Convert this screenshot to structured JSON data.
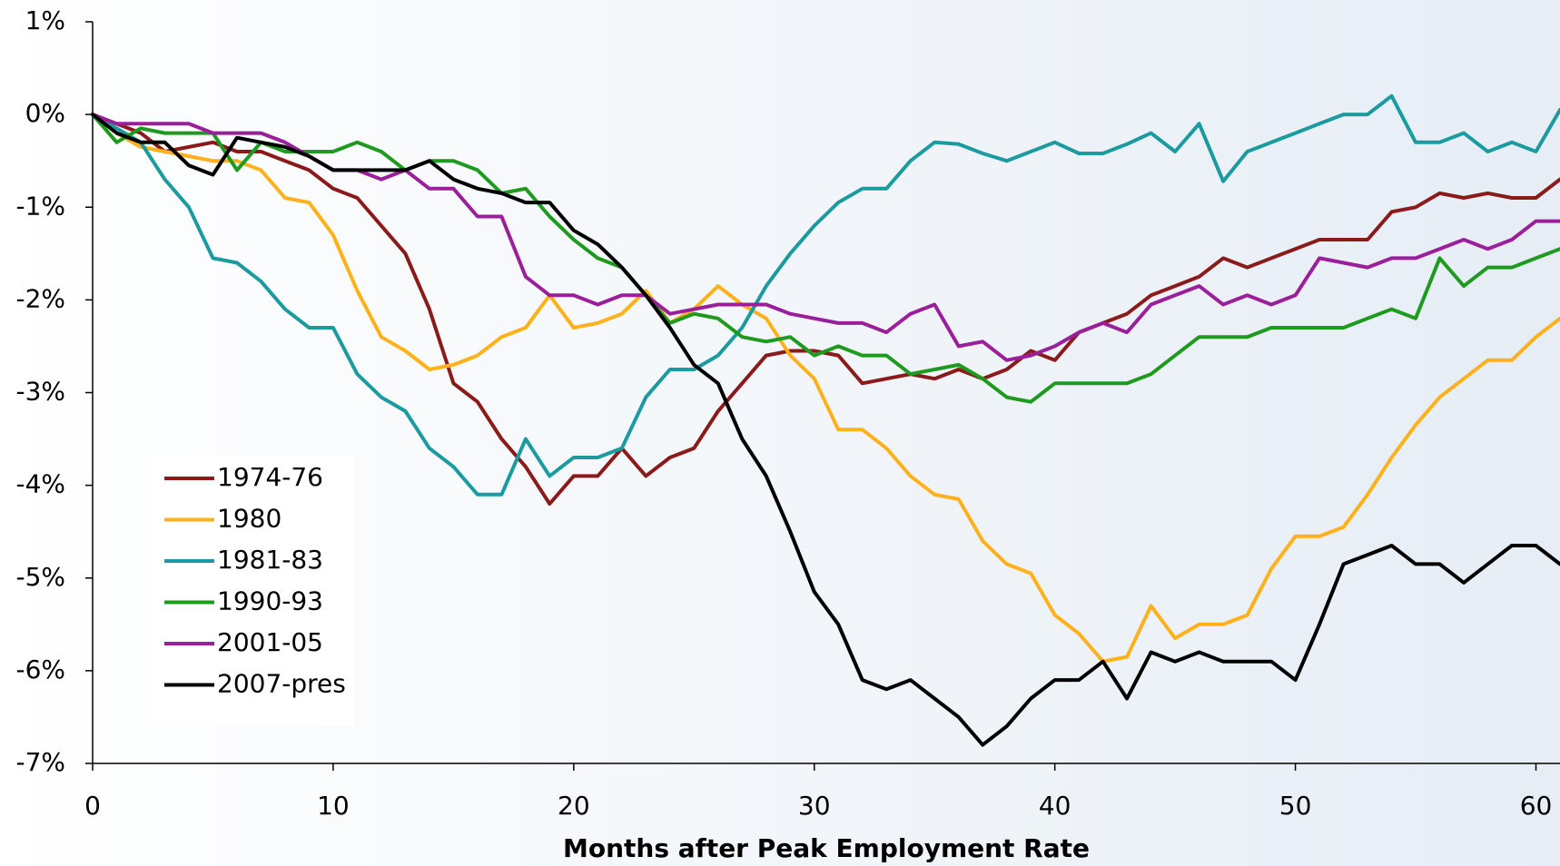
{
  "chart_data": {
    "type": "line",
    "xlabel": "Months after Peak Employment Rate",
    "x": [
      0,
      1,
      2,
      3,
      4,
      5,
      6,
      7,
      8,
      9,
      10,
      11,
      12,
      13,
      14,
      15,
      16,
      17,
      18,
      19,
      20,
      21,
      22,
      23,
      24,
      25,
      26,
      27,
      28,
      29,
      30,
      31,
      32,
      33,
      34,
      35,
      36,
      37,
      38,
      39,
      40,
      41,
      42,
      43,
      44,
      45,
      46,
      47,
      48,
      49,
      50,
      51,
      52,
      53,
      54,
      55,
      56,
      57,
      58,
      59,
      60,
      61
    ],
    "xlim": [
      0,
      61
    ],
    "xticks": [
      0,
      10,
      20,
      30,
      40,
      50,
      60
    ],
    "ylim": [
      -7,
      1
    ],
    "yticks": [
      {
        "value": 1,
        "label": "1%"
      },
      {
        "value": 0,
        "label": "0%"
      },
      {
        "value": -1,
        "label": "-1%"
      },
      {
        "value": -2,
        "label": "-2%"
      },
      {
        "value": -3,
        "label": "-3%"
      },
      {
        "value": -4,
        "label": "-4%"
      },
      {
        "value": -5,
        "label": "-5%"
      },
      {
        "value": -6,
        "label": "-6%"
      },
      {
        "value": -7,
        "label": "-7%"
      }
    ],
    "grid": false,
    "legend": "lower left",
    "series": [
      {
        "name": "1974-76",
        "color": "#8b1a1a",
        "values": [
          0,
          -0.1,
          -0.2,
          -0.4,
          -0.35,
          -0.3,
          -0.4,
          -0.4,
          -0.5,
          -0.6,
          -0.8,
          -0.9,
          -1.2,
          -1.5,
          -2.1,
          -2.9,
          -3.1,
          -3.5,
          -3.8,
          -4.2,
          -3.9,
          -3.9,
          -3.6,
          -3.9,
          -3.7,
          -3.6,
          -3.2,
          -2.9,
          -2.6,
          -2.55,
          -2.55,
          -2.6,
          -2.9,
          -2.85,
          -2.8,
          -2.85,
          -2.75,
          -2.85,
          -2.75,
          -2.55,
          -2.65,
          -2.35,
          -2.25,
          -2.15,
          -1.95,
          -1.85,
          -1.75,
          -1.55,
          -1.65,
          -1.55,
          -1.45,
          -1.35,
          -1.35,
          -1.35,
          -1.05,
          -1.0,
          -0.85,
          -0.9,
          -0.85,
          -0.9,
          -0.9,
          -0.7
        ]
      },
      {
        "name": "1980",
        "color": "#ffb11b",
        "values": [
          0,
          -0.2,
          -0.35,
          -0.4,
          -0.45,
          -0.5,
          -0.5,
          -0.6,
          -0.9,
          -0.95,
          -1.3,
          -1.9,
          -2.4,
          -2.55,
          -2.75,
          -2.7,
          -2.6,
          -2.4,
          -2.3,
          -1.95,
          -2.3,
          -2.25,
          -2.15,
          -1.9,
          -2.25,
          -2.1,
          -1.85,
          -2.05,
          -2.2,
          -2.6,
          -2.85,
          -3.4,
          -3.4,
          -3.6,
          -3.9,
          -4.1,
          -4.15,
          -4.6,
          -4.85,
          -4.95,
          -5.4,
          -5.6,
          -5.9,
          -5.85,
          -5.3,
          -5.65,
          -5.5,
          -5.5,
          -5.4,
          -4.9,
          -4.55,
          -4.55,
          -4.45,
          -4.1,
          -3.7,
          -3.35,
          -3.05,
          -2.85,
          -2.65,
          -2.65,
          -2.4,
          -2.2
        ]
      },
      {
        "name": "1981-83",
        "color": "#1b9aa0",
        "values": [
          0,
          -0.15,
          -0.3,
          -0.7,
          -1.0,
          -1.55,
          -1.6,
          -1.8,
          -2.1,
          -2.3,
          -2.3,
          -2.8,
          -3.05,
          -3.2,
          -3.6,
          -3.8,
          -4.1,
          -4.1,
          -3.5,
          -3.9,
          -3.7,
          -3.7,
          -3.6,
          -3.05,
          -2.75,
          -2.75,
          -2.6,
          -2.3,
          -1.85,
          -1.5,
          -1.2,
          -0.95,
          -0.8,
          -0.8,
          -0.5,
          -0.3,
          -0.32,
          -0.42,
          -0.5,
          -0.4,
          -0.3,
          -0.42,
          -0.42,
          -0.32,
          -0.2,
          -0.4,
          -0.1,
          -0.72,
          -0.4,
          -0.3,
          -0.2,
          -0.1,
          0.0,
          0.0,
          0.2,
          -0.3,
          -0.3,
          -0.2,
          -0.4,
          -0.3,
          -0.4,
          0.05
        ]
      },
      {
        "name": "1990-93",
        "color": "#1e9a1e",
        "values": [
          0,
          -0.3,
          -0.15,
          -0.2,
          -0.2,
          -0.2,
          -0.6,
          -0.3,
          -0.4,
          -0.4,
          -0.4,
          -0.3,
          -0.4,
          -0.6,
          -0.5,
          -0.5,
          -0.6,
          -0.85,
          -0.8,
          -1.1,
          -1.35,
          -1.55,
          -1.65,
          -1.95,
          -2.25,
          -2.15,
          -2.2,
          -2.4,
          -2.45,
          -2.4,
          -2.6,
          -2.5,
          -2.6,
          -2.6,
          -2.8,
          -2.75,
          -2.7,
          -2.85,
          -3.05,
          -3.1,
          -2.9,
          -2.9,
          -2.9,
          -2.9,
          -2.8,
          -2.6,
          -2.4,
          -2.4,
          -2.4,
          -2.3,
          -2.3,
          -2.3,
          -2.3,
          -2.2,
          -2.1,
          -2.2,
          -1.55,
          -1.85,
          -1.65,
          -1.65,
          -1.55,
          -1.45
        ]
      },
      {
        "name": "2001-05",
        "color": "#9b1e9b",
        "values": [
          0,
          -0.1,
          -0.1,
          -0.1,
          -0.1,
          -0.2,
          -0.2,
          -0.2,
          -0.3,
          -0.45,
          -0.6,
          -0.6,
          -0.7,
          -0.6,
          -0.8,
          -0.8,
          -1.1,
          -1.1,
          -1.75,
          -1.95,
          -1.95,
          -2.05,
          -1.95,
          -1.95,
          -2.15,
          -2.1,
          -2.05,
          -2.05,
          -2.05,
          -2.15,
          -2.2,
          -2.25,
          -2.25,
          -2.35,
          -2.15,
          -2.05,
          -2.5,
          -2.45,
          -2.65,
          -2.6,
          -2.5,
          -2.35,
          -2.25,
          -2.35,
          -2.05,
          -1.95,
          -1.85,
          -2.05,
          -1.95,
          -2.05,
          -1.95,
          -1.55,
          -1.6,
          -1.65,
          -1.55,
          -1.55,
          -1.45,
          -1.35,
          -1.45,
          -1.35,
          -1.15,
          -1.15
        ]
      },
      {
        "name": "2007-pres",
        "color": "#000000",
        "values": [
          0,
          -0.2,
          -0.3,
          -0.3,
          -0.55,
          -0.65,
          -0.25,
          -0.3,
          -0.35,
          -0.45,
          -0.6,
          -0.6,
          -0.6,
          -0.6,
          -0.5,
          -0.7,
          -0.8,
          -0.85,
          -0.95,
          -0.95,
          -1.25,
          -1.4,
          -1.65,
          -1.95,
          -2.3,
          -2.7,
          -2.9,
          -3.5,
          -3.9,
          -4.5,
          -5.15,
          -5.5,
          -6.1,
          -6.2,
          -6.1,
          -6.3,
          -6.5,
          -6.8,
          -6.6,
          -6.3,
          -6.1,
          -6.1,
          -5.9,
          -6.3,
          -5.8,
          -5.9,
          -5.8,
          -5.9,
          -5.9,
          -5.9,
          -6.1,
          -5.5,
          -4.85,
          -4.75,
          -4.65,
          -4.85,
          -4.85,
          -5.05,
          -4.85,
          -4.65,
          -4.65,
          -4.85
        ]
      }
    ]
  }
}
